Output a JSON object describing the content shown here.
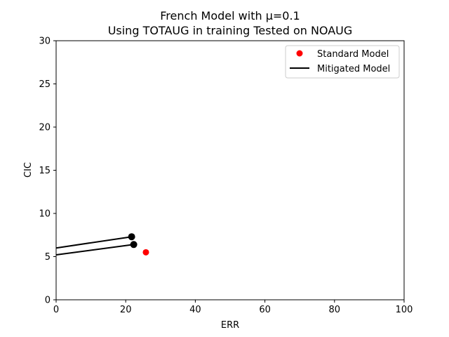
{
  "chart_data": {
    "type": "scatter",
    "title_line1": "French Model with μ=0.1",
    "title_line2": "Using TOTAUG in training Tested on NOAUG",
    "xlabel": "ERR",
    "ylabel": "CIC",
    "xlim": [
      0,
      100
    ],
    "ylim": [
      0,
      30
    ],
    "xticks": [
      0,
      20,
      40,
      60,
      80,
      100
    ],
    "yticks": [
      0,
      5,
      10,
      15,
      20,
      25,
      30
    ],
    "grid": false,
    "legend_position": "top-right",
    "series": [
      {
        "name": "Standard Model",
        "kind": "points",
        "color": "#ff0000",
        "points": [
          [
            25.8,
            5.5
          ]
        ]
      },
      {
        "name": "Mitigated Model",
        "kind": "lines",
        "color": "#000000",
        "segments": [
          [
            [
              0,
              6.0
            ],
            [
              21.7,
              7.3
            ]
          ],
          [
            [
              0,
              5.2
            ],
            [
              22.3,
              6.4
            ]
          ]
        ],
        "end_markers": [
          [
            21.7,
            7.3
          ],
          [
            22.3,
            6.4
          ]
        ]
      }
    ]
  }
}
